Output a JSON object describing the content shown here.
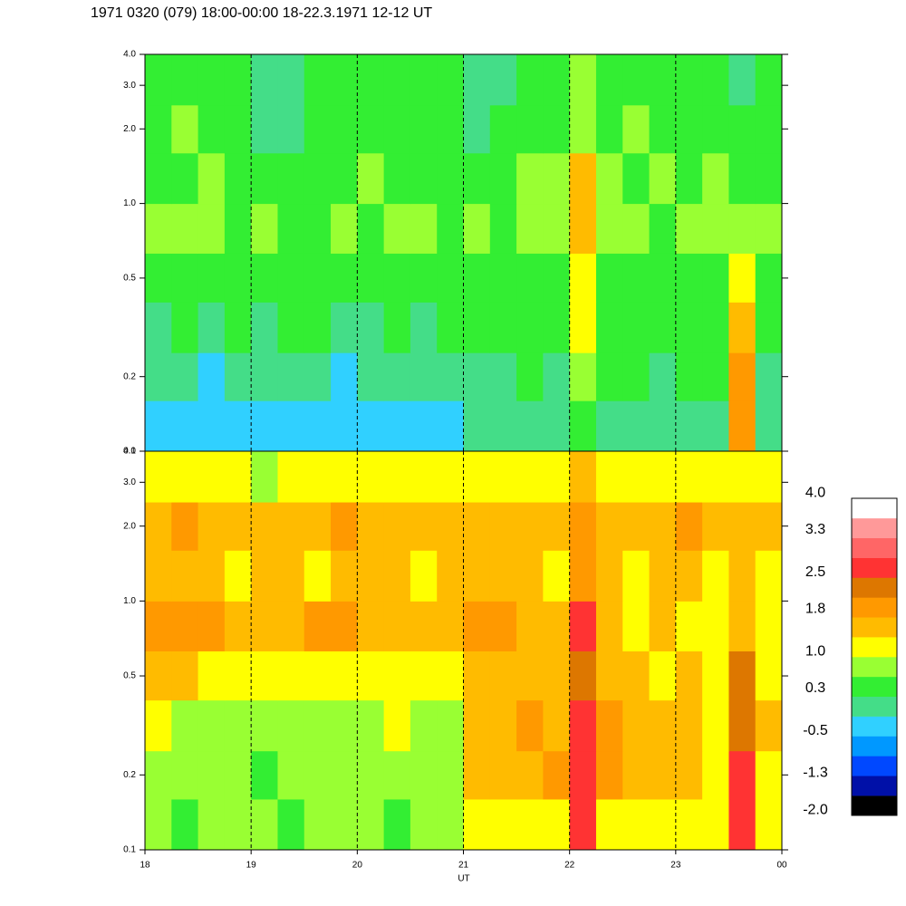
{
  "chart_data": [
    {
      "type": "heatmap",
      "title": "1971 0320 (079) 18:00-00:00 18-22.3.1971  12-12 UT",
      "xlim": [
        18,
        24
      ],
      "xticks": [
        18,
        19,
        20,
        21,
        22,
        23,
        {
          "value": 24,
          "label": "00"
        }
      ],
      "grid": true,
      "log_y": true,
      "ylim": [
        0.1,
        4.0
      ],
      "yticks": [
        0.1,
        0.2,
        0.5,
        {
          "value": 1.0,
          "label": "1.0"
        },
        {
          "value": 2.0,
          "label": "2.0"
        },
        {
          "value": 3.0,
          "label": "3.0"
        },
        {
          "value": 4.0,
          "label": "4.0"
        }
      ],
      "x_bins": [
        18,
        18.25,
        18.5,
        18.75,
        19,
        19.25,
        19.5,
        19.75,
        20,
        20.25,
        20.5,
        20.75,
        21,
        21.25,
        21.5,
        21.75,
        22,
        22.25,
        22.5,
        22.75,
        23,
        23.25,
        23.5,
        23.75,
        24
      ],
      "y_bins": [
        0.1,
        0.16,
        0.25,
        0.4,
        0.63,
        1.0,
        1.6,
        2.5,
        4.0
      ],
      "z": [
        [
          -0.4,
          -0.4,
          -0.4,
          -0.4,
          -0.4,
          -0.4,
          -0.4,
          -0.4,
          -0.4,
          -0.4,
          -0.4,
          -0.4,
          0.0,
          0.0,
          0.0,
          0.0,
          0.3,
          0.0,
          0.0,
          0.0,
          0.0,
          0.0,
          1.8,
          0.0
        ],
        [
          0.0,
          0.0,
          -0.4,
          0.0,
          0.0,
          0.0,
          0.0,
          -0.4,
          0.0,
          0.0,
          0.0,
          0.0,
          0.0,
          0.0,
          0.3,
          0.0,
          0.7,
          0.3,
          0.3,
          0.0,
          0.3,
          0.3,
          1.8,
          0.0
        ],
        [
          0.0,
          0.3,
          0.0,
          0.3,
          0.0,
          0.3,
          0.3,
          0.0,
          0.0,
          0.3,
          0.0,
          0.3,
          0.3,
          0.3,
          0.3,
          0.3,
          1.1,
          0.3,
          0.3,
          0.3,
          0.3,
          0.3,
          1.5,
          0.3
        ],
        [
          0.3,
          0.5,
          0.3,
          0.3,
          0.3,
          0.3,
          0.3,
          0.3,
          0.3,
          0.3,
          0.3,
          0.3,
          0.3,
          0.3,
          0.5,
          0.5,
          1.1,
          0.5,
          0.3,
          0.5,
          0.5,
          0.5,
          1.1,
          0.5
        ],
        [
          0.7,
          0.7,
          0.7,
          0.5,
          0.7,
          0.3,
          0.5,
          0.7,
          0.5,
          0.7,
          0.7,
          0.5,
          0.7,
          0.5,
          0.7,
          0.7,
          1.5,
          0.7,
          0.7,
          0.5,
          0.7,
          0.7,
          0.7,
          0.7
        ],
        [
          0.5,
          0.5,
          0.7,
          0.5,
          0.3,
          0.3,
          0.5,
          0.5,
          0.7,
          0.5,
          0.5,
          0.5,
          0.3,
          0.5,
          0.7,
          0.7,
          1.5,
          0.7,
          0.5,
          0.7,
          0.5,
          0.7,
          0.5,
          0.5
        ],
        [
          0.5,
          0.7,
          0.5,
          0.3,
          0.0,
          0.0,
          0.3,
          0.5,
          0.5,
          0.3,
          0.5,
          0.3,
          0.0,
          0.3,
          0.5,
          0.5,
          0.7,
          0.5,
          0.7,
          0.5,
          0.5,
          0.5,
          0.3,
          0.5
        ],
        [
          0.5,
          0.3,
          0.5,
          0.3,
          0.0,
          -0.1,
          0.3,
          0.5,
          0.3,
          0.5,
          0.3,
          0.5,
          0.0,
          0.0,
          0.3,
          0.5,
          0.7,
          0.3,
          0.5,
          0.3,
          0.5,
          0.3,
          0.0,
          0.3
        ]
      ]
    },
    {
      "type": "heatmap",
      "xlabel": "UT",
      "xlim": [
        18,
        24
      ],
      "xticks": [
        18,
        19,
        20,
        21,
        22,
        23,
        {
          "value": 24,
          "label": "00"
        }
      ],
      "grid": true,
      "log_y": true,
      "ylim": [
        0.1,
        4.0
      ],
      "yticks": [
        0.1,
        0.2,
        0.5,
        {
          "value": 1.0,
          "label": "1.0"
        },
        {
          "value": 2.0,
          "label": "2.0"
        },
        {
          "value": 3.0,
          "label": "3.0"
        },
        {
          "value": 4.0,
          "label": "4.0"
        }
      ],
      "x_bins": [
        18,
        18.25,
        18.5,
        18.75,
        19,
        19.25,
        19.5,
        19.75,
        20,
        20.25,
        20.5,
        20.75,
        21,
        21.25,
        21.5,
        21.75,
        22,
        22.25,
        22.5,
        22.75,
        23,
        23.25,
        23.5,
        23.75,
        24
      ],
      "y_bins": [
        0.1,
        0.16,
        0.25,
        0.4,
        0.63,
        1.0,
        1.6,
        2.5,
        4.0
      ],
      "z": [
        [
          0.7,
          0.3,
          0.7,
          0.7,
          0.7,
          0.3,
          0.7,
          0.7,
          0.7,
          0.3,
          0.7,
          0.7,
          1.1,
          1.1,
          1.1,
          1.1,
          2.6,
          1.1,
          1.1,
          1.1,
          1.1,
          1.1,
          2.6,
          1.1
        ],
        [
          0.7,
          0.7,
          0.7,
          0.7,
          0.3,
          0.7,
          0.7,
          0.7,
          0.7,
          0.7,
          0.7,
          0.7,
          1.5,
          1.5,
          1.5,
          1.8,
          2.6,
          1.8,
          1.5,
          1.5,
          1.5,
          1.1,
          2.6,
          1.1
        ],
        [
          1.1,
          0.7,
          0.7,
          0.7,
          0.7,
          0.7,
          0.7,
          0.7,
          0.7,
          1.1,
          0.7,
          0.7,
          1.5,
          1.5,
          1.8,
          1.5,
          2.6,
          1.8,
          1.5,
          1.5,
          1.5,
          1.1,
          2.2,
          1.5
        ],
        [
          1.5,
          1.5,
          1.1,
          1.1,
          1.1,
          1.1,
          1.1,
          1.1,
          1.1,
          1.1,
          1.1,
          1.1,
          1.5,
          1.5,
          1.5,
          1.5,
          2.2,
          1.5,
          1.5,
          1.1,
          1.5,
          1.1,
          2.2,
          1.1
        ],
        [
          1.8,
          1.8,
          1.8,
          1.5,
          1.5,
          1.5,
          1.8,
          1.8,
          1.5,
          1.5,
          1.5,
          1.5,
          1.8,
          1.8,
          1.5,
          1.5,
          2.6,
          1.5,
          1.1,
          1.5,
          1.1,
          1.1,
          1.5,
          1.1
        ],
        [
          1.5,
          1.5,
          1.5,
          1.1,
          1.5,
          1.5,
          1.1,
          1.5,
          1.5,
          1.5,
          1.1,
          1.5,
          1.5,
          1.5,
          1.5,
          1.1,
          1.8,
          1.5,
          1.1,
          1.5,
          1.5,
          1.1,
          1.5,
          1.1
        ],
        [
          1.5,
          1.8,
          1.5,
          1.5,
          1.5,
          1.5,
          1.5,
          1.8,
          1.5,
          1.5,
          1.5,
          1.5,
          1.5,
          1.5,
          1.5,
          1.5,
          1.8,
          1.5,
          1.5,
          1.5,
          1.8,
          1.5,
          1.5,
          1.5
        ],
        [
          1.1,
          1.1,
          1.1,
          1.1,
          0.7,
          1.1,
          1.1,
          1.1,
          1.1,
          1.1,
          1.1,
          1.1,
          1.1,
          1.1,
          1.1,
          1.1,
          1.5,
          1.1,
          1.1,
          1.1,
          1.1,
          1.1,
          1.1,
          1.1
        ]
      ],
      "colorbar": {
        "clim": [
          -2.1,
          3.9
        ],
        "colors": [
          "#000000",
          "#0010a8",
          "#0048ff",
          "#0098ff",
          "#30d0ff",
          "#44dd88",
          "#33ee33",
          "#99ff33",
          "#ffff00",
          "#ffbb00",
          "#ff9900",
          "#dd7700",
          "#ff3333",
          "#ff6666",
          "#ff9999",
          "#ffffff"
        ],
        "ticks": [
          {
            "value": 4.0,
            "label": "4.0"
          },
          3.3,
          2.5,
          1.8,
          {
            "value": 1.0,
            "label": "1.0"
          },
          0.3,
          -0.5,
          -1.3,
          {
            "value": -2.0,
            "label": "-2.0"
          }
        ]
      }
    }
  ]
}
